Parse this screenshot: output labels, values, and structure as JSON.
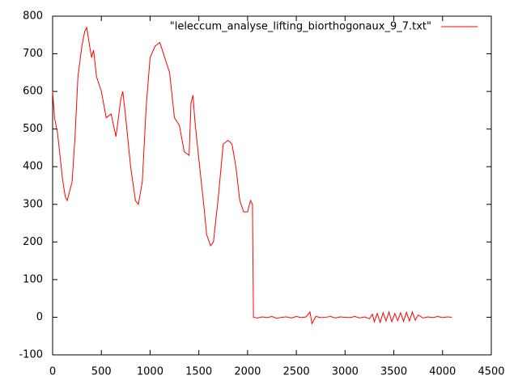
{
  "chart_data": {
    "type": "line",
    "x": [
      0,
      20,
      50,
      80,
      100,
      130,
      150,
      200,
      230,
      260,
      300,
      330,
      350,
      380,
      400,
      420,
      450,
      500,
      550,
      600,
      650,
      700,
      720,
      750,
      800,
      850,
      880,
      920,
      960,
      1000,
      1050,
      1100,
      1150,
      1200,
      1250,
      1300,
      1350,
      1400,
      1420,
      1440,
      1460,
      1500,
      1550,
      1580,
      1620,
      1650,
      1700,
      1750,
      1800,
      1840,
      1880,
      1920,
      1960,
      2000,
      2030,
      2050,
      2060,
      2100,
      2150,
      2200,
      2250,
      2300,
      2350,
      2400,
      2450,
      2500,
      2550,
      2600,
      2640,
      2660,
      2700,
      2750,
      2800,
      2850,
      2900,
      2950,
      3000,
      3050,
      3100,
      3150,
      3200,
      3250,
      3280,
      3300,
      3330,
      3360,
      3390,
      3420,
      3450,
      3480,
      3510,
      3540,
      3570,
      3600,
      3630,
      3660,
      3690,
      3720,
      3750,
      3800,
      3850,
      3900,
      3950,
      4000,
      4050,
      4095
    ],
    "series": [
      {
        "name": "\"leleccum_analyse_lifting_biorthogonaux_9_7.txt\"",
        "color": "#ff0000",
        "values": [
          600,
          530,
          490,
          420,
          370,
          320,
          310,
          360,
          480,
          640,
          720,
          760,
          770,
          720,
          690,
          710,
          640,
          600,
          530,
          540,
          480,
          580,
          600,
          530,
          400,
          310,
          300,
          360,
          560,
          690,
          720,
          730,
          690,
          650,
          530,
          510,
          440,
          430,
          570,
          590,
          520,
          420,
          300,
          220,
          190,
          200,
          320,
          460,
          470,
          460,
          400,
          310,
          280,
          280,
          310,
          300,
          0,
          -2,
          1,
          -1,
          2,
          -3,
          0,
          1,
          -2,
          2,
          -1,
          1,
          14,
          -17,
          2,
          -1,
          0,
          2,
          -2,
          1,
          0,
          -1,
          2,
          -2,
          1,
          -4,
          8,
          -12,
          10,
          -14,
          12,
          -10,
          14,
          -12,
          10,
          -9,
          12,
          -11,
          13,
          -10,
          14,
          -8,
          6,
          -2,
          1,
          -1,
          2,
          -1,
          1,
          0
        ]
      }
    ],
    "xlim": [
      0,
      4500
    ],
    "xticks": [
      0,
      500,
      1000,
      1500,
      2000,
      2500,
      3000,
      3500,
      4000,
      4500
    ],
    "ylim": [
      -100,
      800
    ],
    "yticks": [
      -100,
      0,
      100,
      200,
      300,
      400,
      500,
      600,
      700,
      800
    ],
    "grid": false,
    "legend": "top-right"
  }
}
